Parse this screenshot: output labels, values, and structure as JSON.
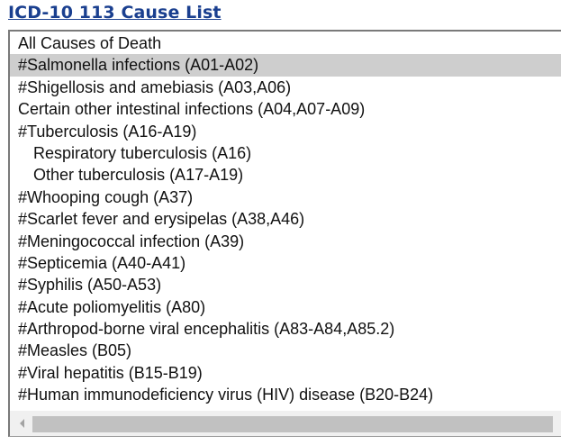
{
  "title": "ICD-10 113 Cause List",
  "options": [
    {
      "label": "All Causes of Death",
      "indent": false,
      "selected": false
    },
    {
      "label": "#Salmonella infections (A01-A02)",
      "indent": false,
      "selected": true
    },
    {
      "label": "#Shigellosis and amebiasis (A03,A06)",
      "indent": false,
      "selected": false
    },
    {
      "label": "Certain other intestinal infections (A04,A07-A09)",
      "indent": false,
      "selected": false
    },
    {
      "label": "#Tuberculosis (A16-A19)",
      "indent": false,
      "selected": false
    },
    {
      "label": "Respiratory tuberculosis (A16)",
      "indent": true,
      "selected": false
    },
    {
      "label": "Other tuberculosis (A17-A19)",
      "indent": true,
      "selected": false
    },
    {
      "label": "#Whooping cough (A37)",
      "indent": false,
      "selected": false
    },
    {
      "label": "#Scarlet fever and erysipelas (A38,A46)",
      "indent": false,
      "selected": false
    },
    {
      "label": "#Meningococcal infection (A39)",
      "indent": false,
      "selected": false
    },
    {
      "label": "#Septicemia (A40-A41)",
      "indent": false,
      "selected": false
    },
    {
      "label": "#Syphilis (A50-A53)",
      "indent": false,
      "selected": false
    },
    {
      "label": "#Acute poliomyelitis (A80)",
      "indent": false,
      "selected": false
    },
    {
      "label": "#Arthropod-borne viral encephalitis (A83-A84,A85.2)",
      "indent": false,
      "selected": false
    },
    {
      "label": "#Measles (B05)",
      "indent": false,
      "selected": false
    },
    {
      "label": "#Viral hepatitis (B15-B19)",
      "indent": false,
      "selected": false
    },
    {
      "label": "#Human immunodeficiency virus (HIV) disease (B20-B24)",
      "indent": false,
      "selected": false
    }
  ],
  "scrollbar": {
    "left_arrow_icon": "chevron-left-icon"
  },
  "colors": {
    "title": "#1a3f8f",
    "selected_bg": "#cecece",
    "scrollbar_thumb": "#c1c1c1"
  }
}
